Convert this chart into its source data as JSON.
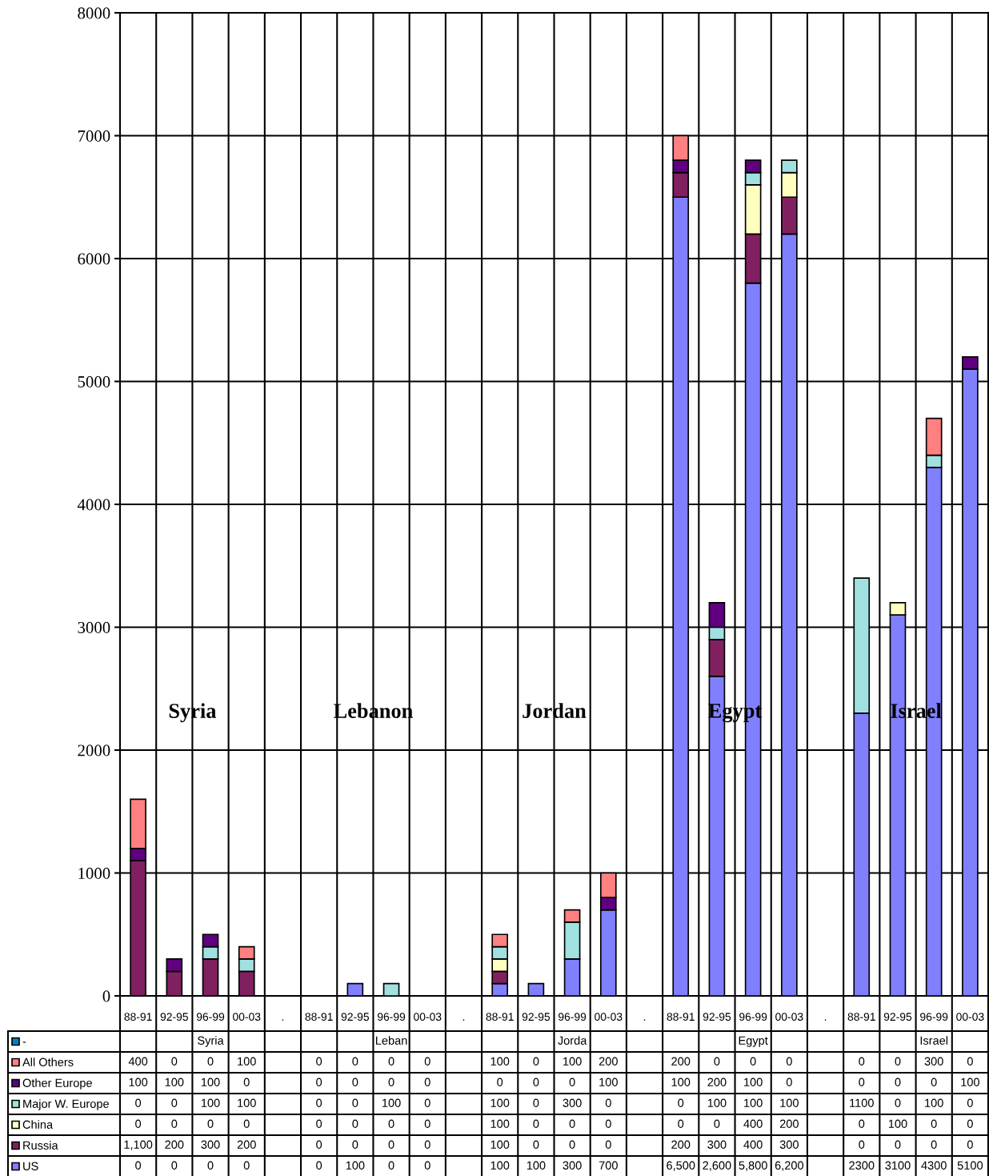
{
  "chart_data": {
    "type": "bar",
    "stacked": true,
    "categories": [
      "88-91",
      "92-95",
      "96-99",
      "00-03",
      ".",
      "88-91",
      "92-95",
      "96-99",
      "00-03",
      ".",
      "88-91",
      "92-95",
      "96-99",
      "00-03",
      ".",
      "88-91",
      "92-95",
      "96-99",
      "00-03",
      ".",
      "88-91",
      "92-95",
      "96-99",
      "00-03"
    ],
    "series": [
      {
        "name": "US",
        "color": "#8080ff",
        "values": [
          0,
          0,
          0,
          0,
          null,
          0,
          100,
          0,
          0,
          null,
          100,
          100,
          300,
          700,
          null,
          6500,
          2600,
          5800,
          6200,
          null,
          2300,
          3100,
          4300,
          5100
        ],
        "value_labels": [
          "0",
          "0",
          "0",
          "0",
          null,
          "0",
          "100",
          "0",
          "0",
          null,
          "100",
          "100",
          "300",
          "700",
          null,
          "6,500",
          "2,600",
          "5,800",
          "6,200",
          null,
          "2300",
          "3100",
          "4300",
          "5100"
        ]
      },
      {
        "name": "Russia",
        "color": "#802060",
        "values": [
          1100,
          200,
          300,
          200,
          null,
          0,
          0,
          0,
          0,
          null,
          100,
          0,
          0,
          0,
          null,
          200,
          300,
          400,
          300,
          null,
          0,
          0,
          0,
          0
        ],
        "value_labels": [
          "1,100",
          "200",
          "300",
          "200",
          null,
          "0",
          "0",
          "0",
          "0",
          null,
          "100",
          "0",
          "0",
          "0",
          null,
          "200",
          "300",
          "400",
          "300",
          null,
          "0",
          "0",
          "0",
          "0"
        ]
      },
      {
        "name": "China",
        "color": "#ffffc0",
        "values": [
          0,
          0,
          0,
          0,
          null,
          0,
          0,
          0,
          0,
          null,
          100,
          0,
          0,
          0,
          null,
          0,
          0,
          400,
          200,
          null,
          0,
          100,
          0,
          0
        ],
        "value_labels": [
          "0",
          "0",
          "0",
          "0",
          null,
          "0",
          "0",
          "0",
          "0",
          null,
          "100",
          "0",
          "0",
          "0",
          null,
          "0",
          "0",
          "400",
          "200",
          null,
          "0",
          "100",
          "0",
          "0"
        ]
      },
      {
        "name": "Major W. Europe",
        "color": "#a0e0e0",
        "values": [
          0,
          0,
          100,
          100,
          null,
          0,
          0,
          100,
          0,
          null,
          100,
          0,
          300,
          0,
          null,
          0,
          100,
          100,
          100,
          null,
          1100,
          0,
          100,
          0
        ],
        "value_labels": [
          "0",
          "0",
          "100",
          "100",
          null,
          "0",
          "0",
          "100",
          "0",
          null,
          "100",
          "0",
          "300",
          "0",
          null,
          "0",
          "100",
          "100",
          "100",
          null,
          "1100",
          "0",
          "100",
          "0"
        ]
      },
      {
        "name": "Other Europe",
        "color": "#600080",
        "values": [
          100,
          100,
          100,
          0,
          null,
          0,
          0,
          0,
          0,
          null,
          0,
          0,
          0,
          100,
          null,
          100,
          200,
          100,
          0,
          null,
          0,
          0,
          0,
          100
        ],
        "value_labels": [
          "100",
          "100",
          "100",
          "0",
          null,
          "0",
          "0",
          "0",
          "0",
          null,
          "0",
          "0",
          "0",
          "100",
          null,
          "100",
          "200",
          "100",
          "0",
          null,
          "0",
          "0",
          "0",
          "100"
        ]
      },
      {
        "name": "All Others",
        "color": "#ff8080",
        "values": [
          400,
          0,
          0,
          100,
          null,
          0,
          0,
          0,
          0,
          null,
          100,
          0,
          100,
          200,
          null,
          200,
          0,
          0,
          0,
          null,
          0,
          0,
          300,
          0
        ],
        "value_labels": [
          "400",
          "0",
          "0",
          "100",
          null,
          "0",
          "0",
          "0",
          "0",
          null,
          "100",
          "0",
          "100",
          "200",
          null,
          "200",
          "0",
          "0",
          "0",
          null,
          "0",
          "0",
          "300",
          "0"
        ]
      },
      {
        "name": "-",
        "color": "#0080c0",
        "values": [
          null,
          null,
          null,
          null,
          null,
          null,
          null,
          null,
          null,
          null,
          null,
          null,
          null,
          null,
          null,
          null,
          null,
          null,
          null,
          null,
          null,
          null,
          null,
          null
        ],
        "value_labels": [
          null,
          null,
          "Syria",
          null,
          null,
          null,
          null,
          "Leban",
          null,
          null,
          null,
          null,
          "Jorda",
          null,
          null,
          null,
          null,
          "Egypt",
          null,
          null,
          null,
          null,
          "Israel",
          null
        ]
      }
    ],
    "ylim": [
      0,
      8000
    ],
    "yticks": [
      0,
      1000,
      2000,
      3000,
      4000,
      5000,
      6000,
      7000,
      8000
    ],
    "grid": true,
    "legend": "bottom left",
    "annotations": [
      "Syria",
      "Lebanon",
      "Jordan",
      "Egypt",
      "Israel"
    ]
  }
}
